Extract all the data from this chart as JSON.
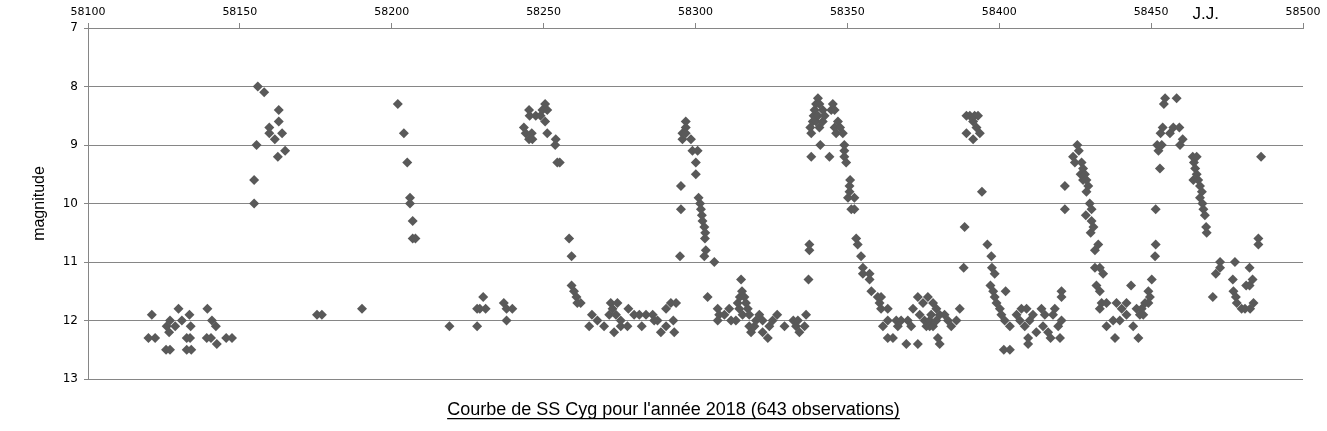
{
  "chart_data": {
    "type": "scatter",
    "title": "Courbe de SS Cyg pour l'année 2018 (643 observations)",
    "xlabel": "J.J.",
    "ylabel": "magnitude",
    "x": [
      58119.9,
      58121.0,
      58122.1,
      58125.7,
      58125.9,
      58126.7,
      58127.0,
      58127.0,
      58128.7,
      58129.8,
      58130.9,
      58132.5,
      58132.5,
      58133.4,
      58133.6,
      58133.8,
      58134.0,
      58139.1,
      58139.3,
      58140.5,
      58140.8,
      58142.1,
      58142.4,
      58145.5,
      58147.4,
      58154.7,
      58154.7,
      58155.5,
      58155.9,
      58158.0,
      58159.7,
      58159.7,
      58161.5,
      58162.5,
      58162.8,
      58162.8,
      58163.9,
      58164.9,
      58175.4,
      58177.0,
      58190.2,
      58202.0,
      58204.0,
      58205.1,
      58206.0,
      58206.0,
      58206.9,
      58206.9,
      58207.8,
      58219.0,
      58228.1,
      58228.1,
      58229.0,
      58230.1,
      58230.9,
      58236.9,
      58237.8,
      58237.8,
      58239.7,
      58243.5,
      58244.1,
      58245.2,
      58245.2,
      58245.4,
      58246.1,
      58246.3,
      58247.4,
      58249.0,
      58249.6,
      58250.5,
      58250.5,
      58251.2,
      58251.2,
      58253.8,
      58254.0,
      58254.5,
      58255.3,
      58258.4,
      58259.2,
      58259.2,
      58260.0,
      58260.8,
      58261.1,
      58262.2,
      58265.0,
      58265.9,
      58267.7,
      58269.9,
      58271.6,
      58272.1,
      58272.7,
      58273.2,
      58273.8,
      58274.3,
      58275.4,
      58275.4,
      58277.6,
      58277.9,
      58279.8,
      58281.5,
      58282.3,
      58283.7,
      58285.9,
      58286.4,
      58287.5,
      58288.6,
      58290.3,
      58290.3,
      58291.9,
      58292.7,
      58293.0,
      58293.6,
      58294.9,
      58295.2,
      58295.2,
      58295.7,
      58295.7,
      58296.8,
      58296.8,
      58296.8,
      58298.5,
      58299.0,
      58300.1,
      58300.1,
      58300.7,
      58301.0,
      58301.5,
      58301.8,
      58302.1,
      58302.3,
      58302.9,
      58302.9,
      58303.1,
      58303.2,
      58303.4,
      58304.0,
      58306.2,
      58307.3,
      58307.8,
      58307.3,
      58309.5,
      58311.1,
      58311.7,
      58313.3,
      58313.9,
      58314.4,
      58314.6,
      58315.0,
      58315.3,
      58315.5,
      58316.1,
      58316.6,
      58317.2,
      58317.7,
      58317.7,
      58318.3,
      58319.4,
      58319.9,
      58321.0,
      58322.1,
      58322.1,
      58323.8,
      58324.3,
      58325.4,
      58326.9,
      58329.3,
      58332.2,
      58333.1,
      58333.7,
      58334.2,
      58335.9,
      58336.4,
      58337.2,
      58337.5,
      58337.5,
      58337.8,
      58338.1,
      58338.1,
      58338.6,
      58338.9,
      58339.2,
      58339.7,
      58339.7,
      58340.3,
      58340.3,
      58340.8,
      58340.8,
      58341.1,
      58341.9,
      58341.9,
      58342.5,
      58344.1,
      58344.7,
      58345.2,
      58345.8,
      58345.8,
      58346.3,
      58346.9,
      58347.6,
      58348.5,
      58349.0,
      58349.0,
      58349.0,
      58349.6,
      58350.2,
      58350.7,
      58350.7,
      58350.9,
      58351.3,
      58352.3,
      58352.3,
      58352.9,
      58353.4,
      58354.5,
      58355.1,
      58355.1,
      58357.3,
      58357.3,
      58357.9,
      58360.0,
      58360.6,
      58361.1,
      58361.1,
      58361.7,
      58363.3,
      58363.3,
      58363.3,
      58365.0,
      58366.1,
      58366.6,
      58367.7,
      58369.4,
      58369.9,
      58371.0,
      58371.6,
      58373.2,
      58373.2,
      58373.8,
      58374.9,
      58375.4,
      58376.0,
      58376.5,
      58377.1,
      58377.1,
      58377.6,
      58378.2,
      58378.2,
      58379.3,
      58379.3,
      58379.8,
      58380.4,
      58380.4,
      58382.0,
      58383.1,
      58384.2,
      58385.9,
      58387.0,
      58388.3,
      58388.6,
      58389.2,
      58389.2,
      58390.3,
      58391.4,
      58391.4,
      58391.9,
      58392.5,
      58393.0,
      58393.6,
      58394.3,
      58396.1,
      58397.1,
      58397.4,
      58397.6,
      58398.0,
      58398.5,
      58398.5,
      58399.1,
      58400.2,
      58400.7,
      58401.5,
      58401.8,
      58402.1,
      58403.5,
      58403.5,
      58405.7,
      58406.8,
      58407.3,
      58408.4,
      58409.0,
      58409.5,
      58409.5,
      58410.0,
      58411.1,
      58412.2,
      58413.9,
      58414.4,
      58415.0,
      58416.1,
      58416.9,
      58417.7,
      58418.3,
      58419.4,
      58420.0,
      58420.5,
      58420.5,
      58420.5,
      58421.6,
      58421.6,
      58424.3,
      58424.9,
      58425.7,
      58426.2,
      58426.8,
      58427.1,
      58427.6,
      58427.6,
      58428.2,
      58428.5,
      58428.7,
      58428.7,
      58429.3,
      58429.8,
      58430.1,
      58430.4,
      58430.4,
      58431.0,
      58431.5,
      58431.5,
      58432.0,
      58432.6,
      58433.1,
      58433.1,
      58433.1,
      58433.7,
      58434.2,
      58435.3,
      58435.3,
      58437.5,
      58438.1,
      58438.6,
      58439.7,
      58440.3,
      58441.9,
      58441.9,
      58443.4,
      58444.1,
      58445.2,
      58445.8,
      58446.3,
      58446.9,
      58447.4,
      58448.0,
      58449.1,
      58449.1,
      58449.6,
      58450.2,
      58451.3,
      58451.5,
      58451.5,
      58452.0,
      58452.4,
      58452.9,
      58453.1,
      58453.5,
      58453.8,
      58454.2,
      58454.6,
      58456.2,
      58457.3,
      58458.4,
      58459.3,
      58459.5,
      58460.4,
      58463.7,
      58463.9,
      58464.1,
      58464.5,
      58465.0,
      58465.0,
      58465.5,
      58466.1,
      58466.1,
      58466.7,
      58466.9,
      58467.2,
      58467.7,
      58468.1,
      58468.3,
      58470.3,
      58471.3,
      58472.7,
      58472.7,
      58476.9,
      58477.1,
      58477.6,
      58477.9,
      58478.2,
      58479.8,
      58480.9,
      58481.3,
      58482.4,
      58482.4,
      58482.6,
      58483.4,
      58483.7,
      58485.3,
      58485.3,
      58486.2
    ],
    "values": [
      12.3,
      11.9,
      12.3,
      12.5,
      12.1,
      12.2,
      12.0,
      12.5,
      12.1,
      11.8,
      12.0,
      12.3,
      12.5,
      11.9,
      12.3,
      12.1,
      12.5,
      12.3,
      11.8,
      12.3,
      12.0,
      12.1,
      12.4,
      12.3,
      12.3,
      9.6,
      10.0,
      9.0,
      8.0,
      8.1,
      8.7,
      8.8,
      8.9,
      9.2,
      8.4,
      8.6,
      8.8,
      9.1,
      11.9,
      11.9,
      11.8,
      8.3,
      8.8,
      9.3,
      9.9,
      10.0,
      10.3,
      10.6,
      10.6,
      12.1,
      11.8,
      12.1,
      11.8,
      11.6,
      11.8,
      11.7,
      11.8,
      12.0,
      11.8,
      8.7,
      8.8,
      8.4,
      8.9,
      8.5,
      8.8,
      8.9,
      8.5,
      8.5,
      8.4,
      8.3,
      8.6,
      8.4,
      8.8,
      9.0,
      8.9,
      9.3,
      9.3,
      10.6,
      10.9,
      11.4,
      11.5,
      11.6,
      11.7,
      11.7,
      12.1,
      11.9,
      12.0,
      12.1,
      11.9,
      11.7,
      11.8,
      12.2,
      11.9,
      11.7,
      12.0,
      12.1,
      12.1,
      11.8,
      11.9,
      11.9,
      12.1,
      11.9,
      11.9,
      12.0,
      12.0,
      12.2,
      11.8,
      12.1,
      11.7,
      12.0,
      12.2,
      11.7,
      10.9,
      10.1,
      9.7,
      8.8,
      8.9,
      8.6,
      8.7,
      8.8,
      8.9,
      9.1,
      9.3,
      9.5,
      9.1,
      9.9,
      10.0,
      10.1,
      10.2,
      10.3,
      10.4,
      10.9,
      10.6,
      10.5,
      10.8,
      11.6,
      11.0,
      11.8,
      11.9,
      12.0,
      11.9,
      11.8,
      12.0,
      12.0,
      11.7,
      11.8,
      11.6,
      11.3,
      11.5,
      11.9,
      11.6,
      11.7,
      11.8,
      11.9,
      12.1,
      12.2,
      12.1,
      12.0,
      11.9,
      12.0,
      12.2,
      12.3,
      12.1,
      12.0,
      11.9,
      12.1,
      12.0,
      12.1,
      12.0,
      12.2,
      12.1,
      11.9,
      11.3,
      10.8,
      10.7,
      8.7,
      9.2,
      8.8,
      8.6,
      8.5,
      8.4,
      8.3,
      8.6,
      8.2,
      8.5,
      8.3,
      8.7,
      9.0,
      8.4,
      8.6,
      8.5,
      9.2,
      8.4,
      8.3,
      8.4,
      8.7,
      8.8,
      8.6,
      8.7,
      8.8,
      9.0,
      9.1,
      9.2,
      9.3,
      9.9,
      9.7,
      9.8,
      9.6,
      10.1,
      9.9,
      10.1,
      10.6,
      10.7,
      10.9,
      11.1,
      11.2,
      11.2,
      11.3,
      11.5,
      11.6,
      11.7,
      11.6,
      11.8,
      12.1,
      11.8,
      12.0,
      12.3,
      12.3,
      12.0,
      12.1,
      12.0,
      12.4,
      12.0,
      12.1,
      11.8,
      11.6,
      12.4,
      11.9,
      11.7,
      12.0,
      12.1,
      11.6,
      12.0,
      12.1,
      11.9,
      11.7,
      12.1,
      11.8,
      12.0,
      12.3,
      11.9,
      12.4,
      11.9,
      12.0,
      12.1,
      12.0,
      11.8,
      11.1,
      10.4,
      8.5,
      8.8,
      8.5,
      8.6,
      8.9,
      8.5,
      8.7,
      8.5,
      8.8,
      9.8,
      10.7,
      11.4,
      10.9,
      11.1,
      11.5,
      11.2,
      11.6,
      11.7,
      11.8,
      11.9,
      12.5,
      12.0,
      11.5,
      12.1,
      12.5,
      11.9,
      12.0,
      11.8,
      12.1,
      11.8,
      12.3,
      12.4,
      12.0,
      11.9,
      12.2,
      11.8,
      12.1,
      11.9,
      12.2,
      12.3,
      11.9,
      11.8,
      12.1,
      12.3,
      11.5,
      11.6,
      12.0,
      9.7,
      10.1,
      9.2,
      9.3,
      9.0,
      9.1,
      9.5,
      9.3,
      9.4,
      9.6,
      9.5,
      10.2,
      9.6,
      9.8,
      9.7,
      10.0,
      10.5,
      10.1,
      10.3,
      10.4,
      10.8,
      11.1,
      11.4,
      10.7,
      11.1,
      11.5,
      11.8,
      11.7,
      11.2,
      11.7,
      12.1,
      12.0,
      12.3,
      11.7,
      12.0,
      11.8,
      11.7,
      11.9,
      11.4,
      12.1,
      11.8,
      12.3,
      11.9,
      11.8,
      11.9,
      11.7,
      11.7,
      11.5,
      11.6,
      11.3,
      10.9,
      10.7,
      10.1,
      9.0,
      9.1,
      9.4,
      8.8,
      9.0,
      8.7,
      8.3,
      8.2,
      8.8,
      8.7,
      8.2,
      8.7,
      9.0,
      8.9,
      9.2,
      9.6,
      9.3,
      9.4,
      9.2,
      9.5,
      9.6,
      9.7,
      9.9,
      9.8,
      10.0,
      10.1,
      10.2,
      10.4,
      10.5,
      11.6,
      11.2,
      11.1,
      11.0,
      11.3,
      11.5,
      11.0,
      11.6,
      11.7,
      11.8,
      11.8,
      11.4,
      11.1,
      11.4,
      11.8,
      11.3,
      11.7,
      10.6,
      10.7,
      9.2
    ],
    "color": "#595959",
    "marker": "diamond",
    "xlim": [
      58100,
      58500
    ],
    "xticks": [
      58100,
      58150,
      58200,
      58250,
      58300,
      58350,
      58400,
      58450,
      58500
    ],
    "ylim": [
      13,
      7
    ],
    "yticks": [
      7,
      8,
      9,
      10,
      11,
      12,
      13
    ],
    "grid": "y"
  }
}
